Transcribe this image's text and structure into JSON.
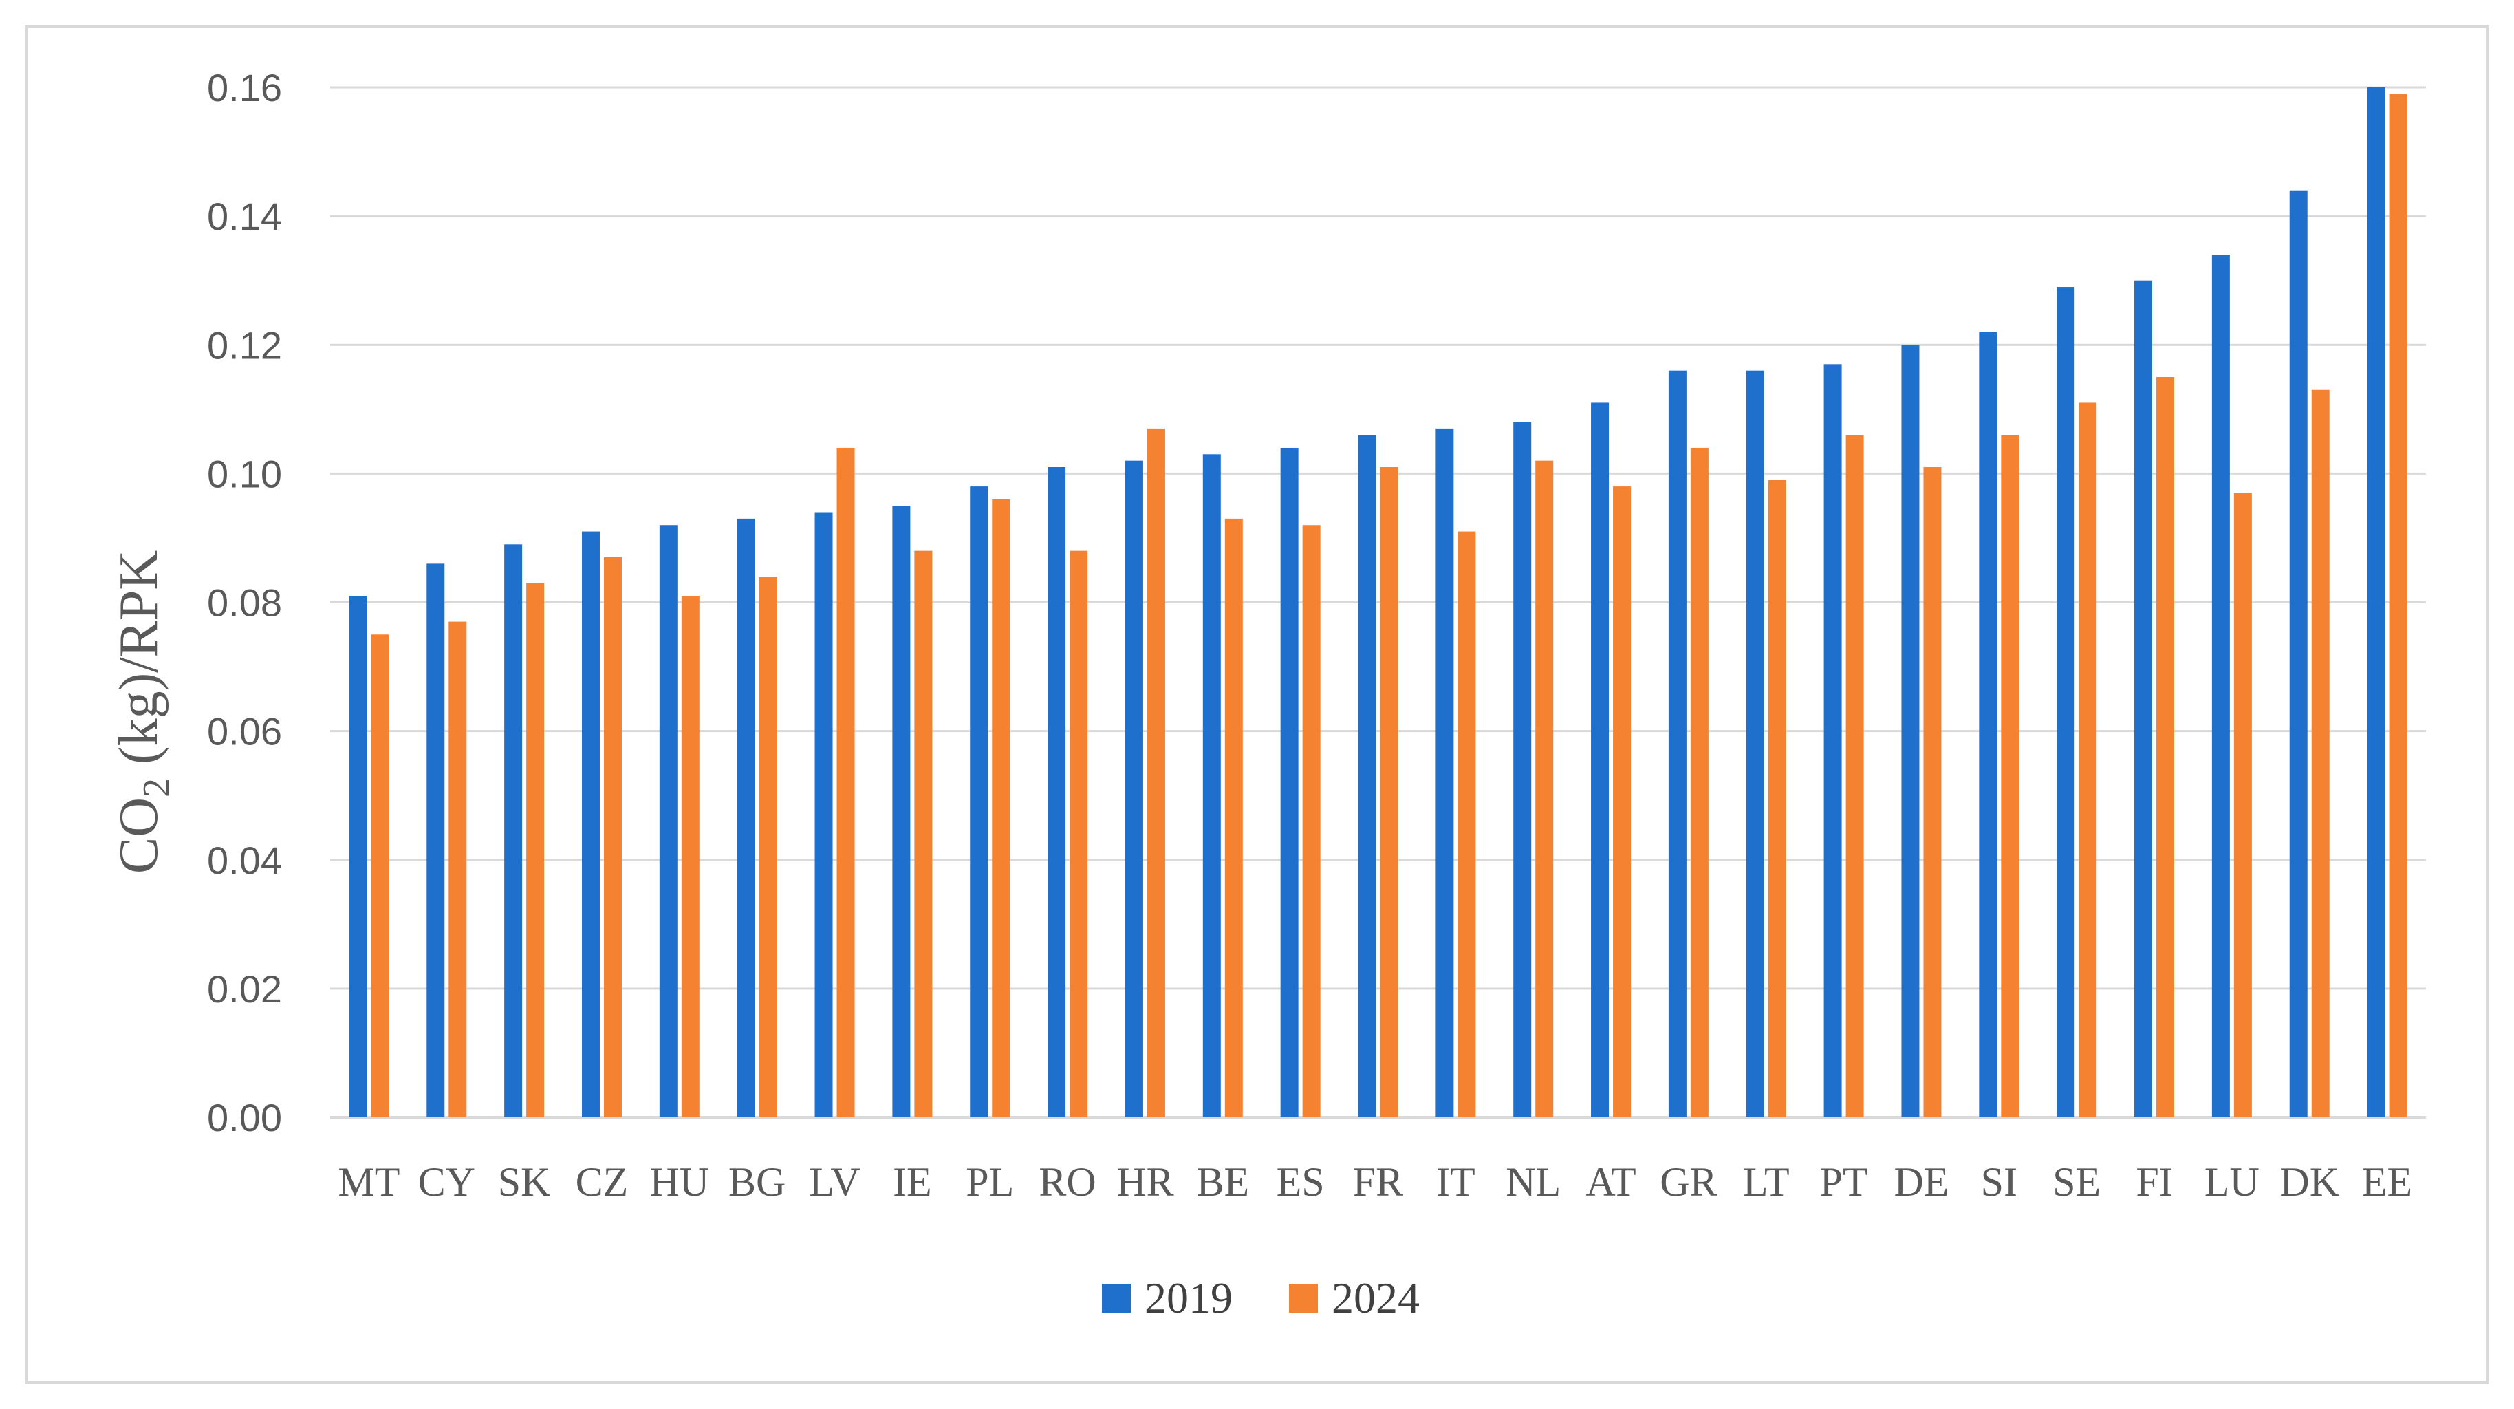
{
  "chart_data": {
    "type": "bar",
    "ylabel": {
      "main": "CO",
      "subscript": "2",
      "rest": " (kg)/RPK"
    },
    "ylim": [
      0,
      0.16
    ],
    "yticks": [
      "0.00",
      "0.02",
      "0.04",
      "0.06",
      "0.08",
      "0.10",
      "0.12",
      "0.14",
      "0.16"
    ],
    "grid": true,
    "legend_position": "bottom",
    "categories": [
      "MT",
      "CY",
      "SK",
      "CZ",
      "HU",
      "BG",
      "LV",
      "IE",
      "PL",
      "RO",
      "HR",
      "BE",
      "ES",
      "FR",
      "IT",
      "NL",
      "AT",
      "GR",
      "LT",
      "PT",
      "DE",
      "SI",
      "SE",
      "FI",
      "LU",
      "DK",
      "EE"
    ],
    "series": [
      {
        "name": "2019",
        "color": "#1f6fcc",
        "values": [
          0.081,
          0.086,
          0.089,
          0.091,
          0.092,
          0.093,
          0.094,
          0.095,
          0.098,
          0.101,
          0.102,
          0.103,
          0.104,
          0.106,
          0.107,
          0.108,
          0.111,
          0.116,
          0.116,
          0.117,
          0.12,
          0.122,
          0.129,
          0.13,
          0.134,
          0.144,
          0.16
        ]
      },
      {
        "name": "2024",
        "color": "#f58231",
        "values": [
          0.075,
          0.077,
          0.083,
          0.087,
          0.081,
          0.084,
          0.104,
          0.088,
          0.096,
          0.088,
          0.107,
          0.093,
          0.092,
          0.101,
          0.091,
          0.102,
          0.098,
          0.104,
          0.099,
          0.106,
          0.101,
          0.106,
          0.111,
          0.115,
          0.097,
          0.113,
          0.159
        ]
      }
    ]
  }
}
